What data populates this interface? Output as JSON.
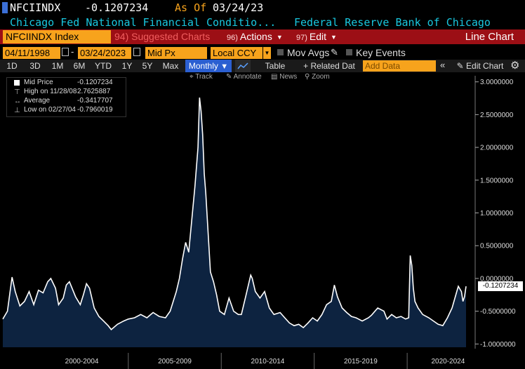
{
  "header": {
    "ticker": "NFCIINDX",
    "last_price": "-0.1207234",
    "as_of_label": "As Of",
    "as_of_date": "03/24/23",
    "description": "Chicago Fed National Financial Conditio...",
    "source": "Federal Reserve Bank of Chicago"
  },
  "function_bar": {
    "index_label": "NFCIINDX Index",
    "suggested_label": "94) Suggested Charts",
    "actions_num": "96)",
    "actions_label": "Actions",
    "edit_num": "97)",
    "edit_label": "Edit",
    "chart_type": "Line Chart"
  },
  "controls": {
    "start_date": "04/11/1998",
    "end_date": "03/24/2023",
    "price_field": "Mid Px",
    "currency": "Local CCY",
    "mov_avgs_label": "Mov Avgs",
    "key_events_label": "Key Events"
  },
  "period_bar": {
    "periods": [
      "1D",
      "3D",
      "1M",
      "6M",
      "YTD",
      "1Y",
      "5Y",
      "Max"
    ],
    "frequency": "Monthly",
    "table_label": "Table",
    "related_label": "+ Related Dat",
    "add_data_placeholder": "Add Data",
    "edit_chart_label": "Edit Chart"
  },
  "chart_toolbar": {
    "track": "Track",
    "annotate": "Annotate",
    "news": "News",
    "zoom": "Zoom"
  },
  "legend": {
    "mid_label": "Mid Price",
    "mid_value": "-0.1207234",
    "high_label": "High on 11/28/08",
    "high_value": "2.7625887",
    "avg_label": "Average",
    "avg_value": "-0.3417707",
    "low_label": "Low on 02/27/04",
    "low_value": "-0.7960019"
  },
  "colors": {
    "accent_orange": "#f7a31c",
    "function_bar_red": "#9c0f15",
    "description_cyan": "#19c8e0",
    "area_fill": "#0d2340",
    "line": "#ffffff",
    "frequency_blue": "#2b5fd1"
  },
  "chart_data": {
    "type": "area",
    "x": [
      "1998-04",
      "1998-07",
      "1998-09",
      "1998-10",
      "1998-12",
      "1999-03",
      "1999-06",
      "1999-09",
      "1999-12",
      "2000-03",
      "2000-06",
      "2000-09",
      "2000-11",
      "2001-02",
      "2001-04",
      "2001-07",
      "2001-09",
      "2001-11",
      "2002-03",
      "2002-06",
      "2002-08",
      "2002-10",
      "2002-12",
      "2003-03",
      "2003-06",
      "2003-09",
      "2003-12",
      "2004-02",
      "2004-06",
      "2004-10",
      "2005-01",
      "2005-05",
      "2005-09",
      "2006-01",
      "2006-05",
      "2006-09",
      "2007-01",
      "2007-04",
      "2007-06",
      "2007-08",
      "2007-10",
      "2007-12",
      "2008-02",
      "2008-04",
      "2008-06",
      "2008-08",
      "2008-10",
      "2008-11",
      "2008-12",
      "2009-01",
      "2009-02",
      "2009-03",
      "2009-04",
      "2009-05",
      "2009-06",
      "2009-08",
      "2009-10",
      "2009-12",
      "2010-03",
      "2010-06",
      "2010-09",
      "2010-12",
      "2011-02",
      "2011-05",
      "2011-08",
      "2011-09",
      "2011-11",
      "2012-02",
      "2012-05",
      "2012-08",
      "2012-11",
      "2013-03",
      "2013-06",
      "2013-09",
      "2013-12",
      "2014-03",
      "2014-06",
      "2014-09",
      "2014-12",
      "2015-03",
      "2015-06",
      "2015-09",
      "2015-12",
      "2016-02",
      "2016-04",
      "2016-07",
      "2016-10",
      "2017-01",
      "2017-04",
      "2017-08",
      "2017-12",
      "2018-02",
      "2018-06",
      "2018-10",
      "2018-12",
      "2019-03",
      "2019-06",
      "2019-09",
      "2019-12",
      "2020-02",
      "2020-03",
      "2020-04",
      "2020-05",
      "2020-06",
      "2020-08",
      "2020-11",
      "2021-03",
      "2021-06",
      "2021-09",
      "2021-12",
      "2022-03",
      "2022-06",
      "2022-09",
      "2022-10",
      "2022-12",
      "2023-01",
      "2023-02",
      "2023-03"
    ],
    "series": [
      {
        "values": [
          -0.62,
          -0.5,
          -0.15,
          0.02,
          -0.2,
          -0.42,
          -0.35,
          -0.2,
          -0.4,
          -0.18,
          -0.22,
          -0.05,
          0.0,
          -0.15,
          -0.4,
          -0.3,
          -0.1,
          -0.05,
          -0.28,
          -0.4,
          -0.25,
          -0.08,
          -0.15,
          -0.45,
          -0.58,
          -0.65,
          -0.72,
          -0.78,
          -0.7,
          -0.65,
          -0.62,
          -0.6,
          -0.55,
          -0.6,
          -0.52,
          -0.58,
          -0.6,
          -0.5,
          -0.35,
          -0.2,
          0.0,
          0.3,
          0.55,
          0.4,
          0.9,
          1.4,
          2.0,
          2.76,
          2.55,
          2.2,
          1.6,
          1.3,
          0.9,
          0.5,
          0.1,
          -0.05,
          -0.25,
          -0.5,
          -0.55,
          -0.3,
          -0.5,
          -0.55,
          -0.55,
          -0.25,
          0.05,
          0.0,
          -0.2,
          -0.3,
          -0.2,
          -0.45,
          -0.55,
          -0.52,
          -0.6,
          -0.68,
          -0.72,
          -0.7,
          -0.75,
          -0.68,
          -0.6,
          -0.65,
          -0.55,
          -0.4,
          -0.35,
          -0.1,
          -0.28,
          -0.45,
          -0.52,
          -0.58,
          -0.6,
          -0.65,
          -0.6,
          -0.56,
          -0.45,
          -0.5,
          -0.62,
          -0.55,
          -0.6,
          -0.58,
          -0.62,
          -0.6,
          0.35,
          0.2,
          -0.15,
          -0.35,
          -0.45,
          -0.55,
          -0.6,
          -0.65,
          -0.7,
          -0.72,
          -0.6,
          -0.45,
          -0.2,
          -0.12,
          -0.2,
          -0.35,
          -0.28,
          -0.12
        ]
      }
    ],
    "y_ticks": [
      "3.0000000",
      "2.5000000",
      "2.0000000",
      "1.5000000",
      "1.0000000",
      "0.5000000",
      "0.0000000",
      "-0.5000000",
      "-1.0000000"
    ],
    "x_ticks": [
      "2000-2004",
      "2005-2009",
      "2010-2014",
      "2015-2019",
      "2020-2024"
    ],
    "ylim": [
      -1.05,
      3.05
    ],
    "last_value_label": "-0.1207234",
    "grid": false
  }
}
